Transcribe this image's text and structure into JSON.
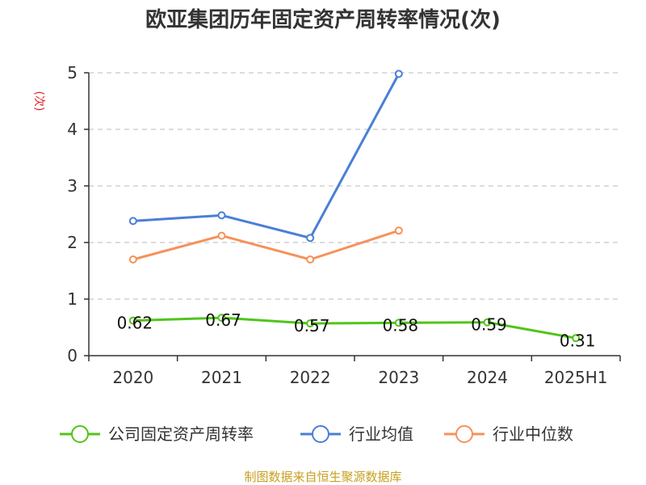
{
  "chart_data": {
    "type": "line",
    "title": "欧亚集团历年固定资产周转率情况(次)",
    "ylabel": "(次)",
    "categories": [
      "2020",
      "2021",
      "2022",
      "2023",
      "2024",
      "2025H1"
    ],
    "ylim": [
      0,
      5
    ],
    "yticks": [
      "0",
      "1",
      "2",
      "3",
      "4",
      "5"
    ],
    "grid": true,
    "legend_position": "bottom",
    "series": [
      {
        "name": "公司固定资产周转率",
        "color": "#52c41a",
        "values": [
          0.62,
          0.67,
          0.57,
          0.58,
          0.59,
          0.31
        ],
        "labels": [
          "0.62",
          "0.67",
          "0.57",
          "0.58",
          "0.59",
          "0.31"
        ]
      },
      {
        "name": "行业均值",
        "color": "#4a7fd6",
        "values": [
          2.38,
          2.48,
          2.08,
          4.98,
          null,
          null
        ]
      },
      {
        "name": "行业中位数",
        "color": "#f5925a",
        "values": [
          1.7,
          2.12,
          1.7,
          2.21,
          null,
          null
        ]
      }
    ],
    "source": "制图数据来自恒生聚源数据库"
  }
}
